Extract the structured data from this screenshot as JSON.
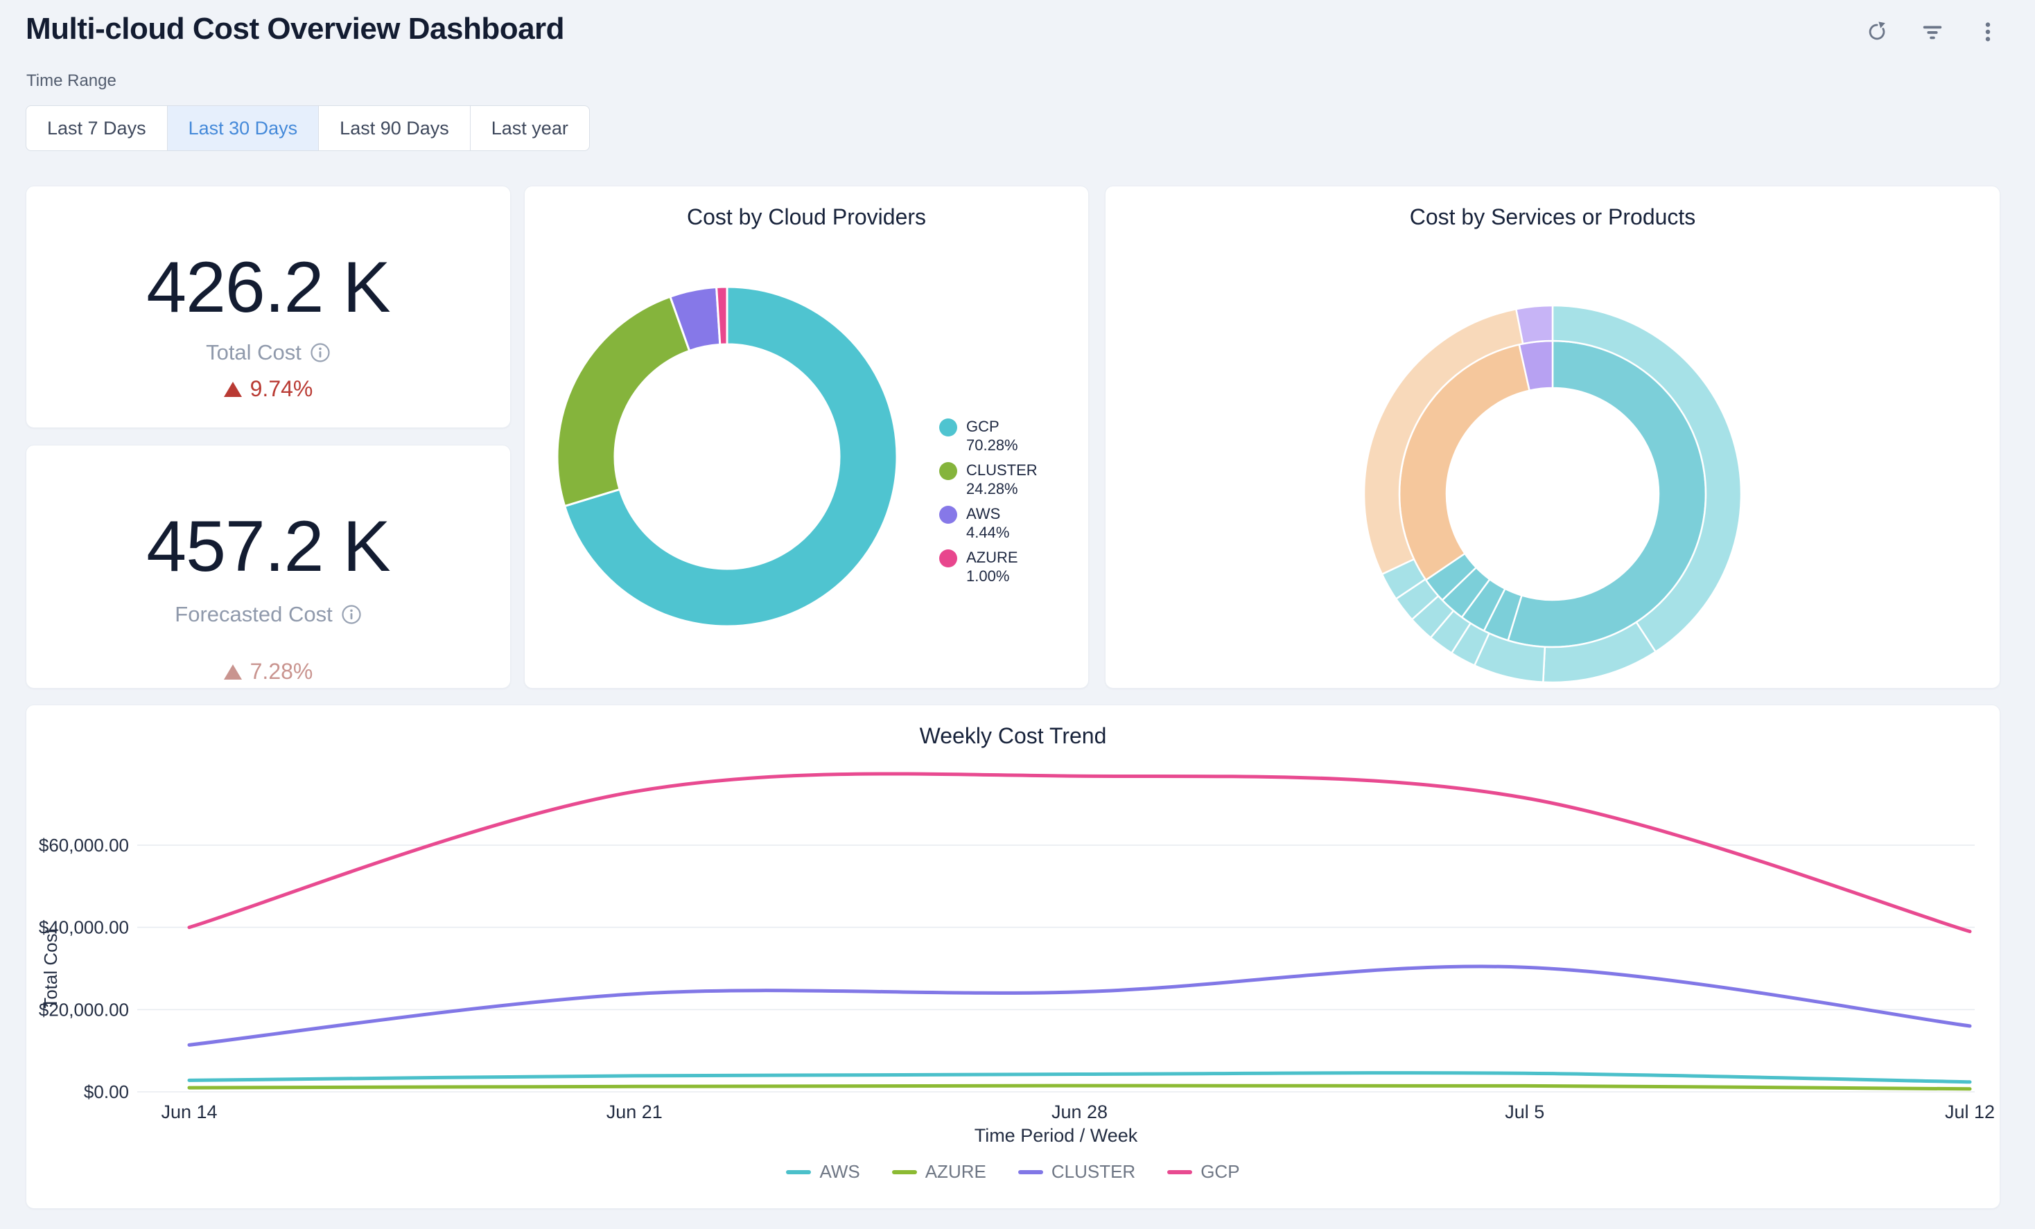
{
  "header": {
    "title": "Multi-cloud Cost Overview Dashboard",
    "actions": {
      "refresh": "refresh",
      "filter": "filter",
      "more": "more options"
    }
  },
  "time_range": {
    "label": "Time Range",
    "options": [
      {
        "label": "Last 7 Days",
        "selected": false
      },
      {
        "label": "Last 30 Days",
        "selected": true
      },
      {
        "label": "Last 90 Days",
        "selected": false
      },
      {
        "label": "Last year",
        "selected": false
      }
    ]
  },
  "kpis": [
    {
      "value": "426.2 K",
      "label": "Total Cost",
      "delta": "9.74%",
      "delta_direction": "up",
      "delta_color": "#b93a33"
    },
    {
      "value": "457.2 K",
      "label": "Forecasted Cost",
      "delta": "7.28%",
      "delta_direction": "up",
      "delta_color": "#c9948f"
    }
  ],
  "colors": {
    "page_bg": "#f0f3f8",
    "panel_border": "#e9edf3",
    "title_navy": "#131c31",
    "muted_gray": "#8f99ab",
    "icon_gray": "#6b7588",
    "selected_blue": "#4489d9",
    "grid_line": "#e8ecf1"
  },
  "chart_data": [
    {
      "type": "pie",
      "variant": "donut",
      "title": "Cost by Cloud Providers",
      "inner_radius": 162,
      "outer_radius": 245,
      "legend_position": "right",
      "slices": [
        {
          "label": "GCP",
          "pct": 70.28,
          "color": "#4fc4d0",
          "legend_label": "GCP 70.28%"
        },
        {
          "label": "CLUSTER",
          "pct": 24.28,
          "color": "#85b43c",
          "legend_label": "CLUSTER 24.28%"
        },
        {
          "label": "AWS",
          "pct": 4.44,
          "color": "#8678e8",
          "legend_label": "AWS 4.44%"
        },
        {
          "label": "AZURE",
          "pct": 1.0,
          "color": "#e8468d",
          "legend_label": "AZURE 1.00%"
        }
      ]
    },
    {
      "type": "pie",
      "variant": "sunburst",
      "title": "Cost by Services or Products",
      "rings": [
        {
          "name": "inner",
          "inner_radius": 153,
          "outer_radius": 221,
          "segments": [
            {
              "pct": 54.7,
              "color": "#7ccfd9"
            },
            {
              "pct": 2.7,
              "color": "#7ccfd9"
            },
            {
              "pct": 2.7,
              "color": "#7ccfd9"
            },
            {
              "pct": 2.7,
              "color": "#7ccfd9"
            },
            {
              "pct": 2.7,
              "color": "#7ccfd9"
            },
            {
              "pct": 31.0,
              "color": "#f5c79c"
            },
            {
              "pct": 3.5,
              "color": "#b7a1f2"
            }
          ]
        },
        {
          "name": "outer",
          "inner_radius": 221,
          "outer_radius": 272,
          "segments": [
            {
              "pct": 40.8,
              "color": "#a6e1e7"
            },
            {
              "pct": 10.0,
              "color": "#a6e1e7"
            },
            {
              "pct": 6.0,
              "color": "#a6e1e7"
            },
            {
              "pct": 2.2,
              "color": "#a6e1e7"
            },
            {
              "pct": 2.2,
              "color": "#a6e1e7"
            },
            {
              "pct": 2.2,
              "color": "#a6e1e7"
            },
            {
              "pct": 2.2,
              "color": "#a6e1e7"
            },
            {
              "pct": 2.4,
              "color": "#a6e1e7"
            },
            {
              "pct": 28.9,
              "color": "#f8d9ba"
            },
            {
              "pct": 3.1,
              "color": "#c7b4f6"
            }
          ]
        }
      ]
    },
    {
      "type": "line",
      "title": "Weekly Cost Trend",
      "xlabel": "Time Period / Week",
      "ylabel": "Total Cost",
      "x": [
        "Jun 14",
        "Jun 21",
        "Jun 28",
        "Jul 5",
        "Jul 12"
      ],
      "yticks": [
        "$0.00",
        "$20,000.00",
        "$40,000.00",
        "$60,000.00"
      ],
      "ytick_values": [
        0,
        20000,
        40000,
        60000
      ],
      "ylim": [
        0,
        80000
      ],
      "grid": true,
      "legend_position": "bottom",
      "smooth": true,
      "series": [
        {
          "name": "AWS",
          "color": "#4bc0ca",
          "values": [
            2800,
            3900,
            4300,
            4500,
            2400
          ]
        },
        {
          "name": "AZURE",
          "color": "#8cba33",
          "values": [
            1000,
            1300,
            1500,
            1450,
            700
          ]
        },
        {
          "name": "CLUSTER",
          "color": "#8177e6",
          "values": [
            11400,
            23800,
            24300,
            30300,
            16000
          ]
        },
        {
          "name": "GCP",
          "color": "#e84a90",
          "values": [
            40000,
            73000,
            76800,
            71500,
            39000
          ]
        }
      ]
    }
  ]
}
